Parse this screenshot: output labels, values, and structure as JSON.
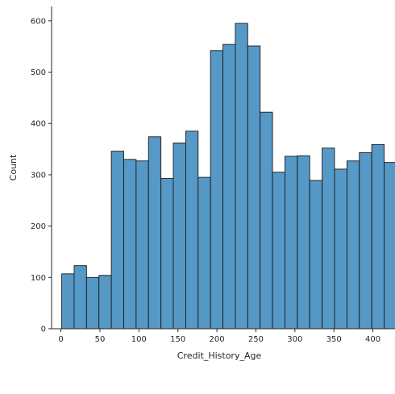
{
  "chart_data": {
    "type": "bar",
    "subtype": "histogram",
    "title": "",
    "xlabel": "Credit_History_Age",
    "ylabel": "Count",
    "xlim": [
      -12,
      418
    ],
    "ylim": [
      0,
      628
    ],
    "xticks": [
      0,
      50,
      100,
      150,
      200,
      250,
      300,
      350,
      400
    ],
    "yticks": [
      0,
      100,
      200,
      300,
      400,
      500,
      600
    ],
    "bin_width": 15.9,
    "bin_start": 1,
    "values": [
      107,
      123,
      100,
      104,
      346,
      330,
      327,
      374,
      293,
      362,
      385,
      295,
      542,
      554,
      595,
      551,
      422,
      305,
      336,
      337,
      289,
      352,
      311,
      327,
      343,
      359,
      324
    ],
    "grid": false,
    "legend": "none",
    "bar_fill": "#5698c6",
    "bar_stroke": "#1a1a1a",
    "axis_color": "#262626"
  }
}
